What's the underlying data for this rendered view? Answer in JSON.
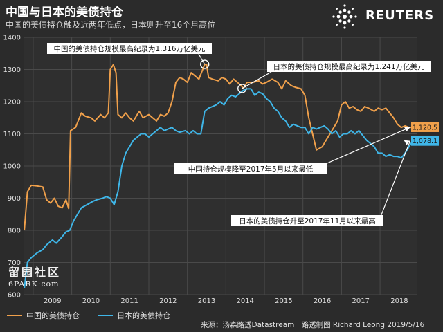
{
  "header": {
    "title": "中国与日本的美债持仓",
    "subtitle": "中国的美债持仓触及近两年低点，日本则升至16个月高位"
  },
  "brand": {
    "name": "REUTERS"
  },
  "watermark": {
    "line1": "留园社区",
    "line2": "6PARK·com"
  },
  "legend": {
    "china": "中国的美债持仓",
    "japan": "日本的美债持仓"
  },
  "source": "来源：汤森路透Datastream | 路透制图 Richard Leong 2019/5/16",
  "colors": {
    "background": "#2b2b2b",
    "china": "#f0a04b",
    "japan": "#3fb6e8",
    "grid": "#4a4a4a"
  },
  "chart_data": {
    "type": "line",
    "title": "中国与日本的美债持仓",
    "xlabel": "",
    "ylabel": "",
    "xlim": [
      2008.75,
      2018.95
    ],
    "ylim": [
      600,
      1400
    ],
    "grid": true,
    "legend_position": "bottom-left",
    "y_ticks": [
      600,
      700,
      800,
      900,
      1000,
      1100,
      1200,
      1300,
      1400
    ],
    "x_ticks": [
      {
        "value": 2009,
        "label": "2009"
      },
      {
        "value": 2010,
        "label": "2010"
      },
      {
        "value": 2011,
        "label": "2011"
      },
      {
        "value": 2012,
        "label": "2012"
      },
      {
        "value": 2013,
        "label": "2013"
      },
      {
        "value": 2014,
        "label": "2014"
      },
      {
        "value": 2015,
        "label": "2015"
      },
      {
        "value": 2016,
        "label": "2016"
      },
      {
        "value": 2017,
        "label": "2017"
      },
      {
        "value": 2018,
        "label": "2018"
      }
    ],
    "series": [
      {
        "name": "中国的美债持仓",
        "key": "china",
        "end_label": "1,120.5",
        "points": [
          [
            2008.77,
            800
          ],
          [
            2008.85,
            920
          ],
          [
            2008.95,
            940
          ],
          [
            2009.1,
            938
          ],
          [
            2009.25,
            935
          ],
          [
            2009.35,
            895
          ],
          [
            2009.45,
            885
          ],
          [
            2009.55,
            900
          ],
          [
            2009.65,
            875
          ],
          [
            2009.75,
            870
          ],
          [
            2009.85,
            895
          ],
          [
            2009.92,
            868
          ],
          [
            2009.97,
            1110
          ],
          [
            2010.1,
            1120
          ],
          [
            2010.25,
            1165
          ],
          [
            2010.35,
            1155
          ],
          [
            2010.5,
            1150
          ],
          [
            2010.6,
            1140
          ],
          [
            2010.75,
            1160
          ],
          [
            2010.85,
            1150
          ],
          [
            2010.95,
            1165
          ],
          [
            2011.0,
            1300
          ],
          [
            2011.08,
            1315
          ],
          [
            2011.15,
            1290
          ],
          [
            2011.2,
            1160
          ],
          [
            2011.3,
            1150
          ],
          [
            2011.4,
            1165
          ],
          [
            2011.5,
            1150
          ],
          [
            2011.6,
            1140
          ],
          [
            2011.75,
            1170
          ],
          [
            2011.85,
            1150
          ],
          [
            2012.0,
            1160
          ],
          [
            2012.1,
            1150
          ],
          [
            2012.2,
            1140
          ],
          [
            2012.3,
            1160
          ],
          [
            2012.4,
            1155
          ],
          [
            2012.5,
            1165
          ],
          [
            2012.6,
            1200
          ],
          [
            2012.7,
            1260
          ],
          [
            2012.8,
            1275
          ],
          [
            2012.9,
            1270
          ],
          [
            2013.0,
            1260
          ],
          [
            2013.1,
            1290
          ],
          [
            2013.2,
            1280
          ],
          [
            2013.3,
            1270
          ],
          [
            2013.45,
            1316
          ],
          [
            2013.5,
            1315
          ],
          [
            2013.55,
            1275
          ],
          [
            2013.65,
            1270
          ],
          [
            2013.8,
            1265
          ],
          [
            2013.9,
            1275
          ],
          [
            2014.0,
            1270
          ],
          [
            2014.1,
            1255
          ],
          [
            2014.2,
            1270
          ],
          [
            2014.3,
            1260
          ],
          [
            2014.4,
            1250
          ],
          [
            2014.45,
            1241
          ],
          [
            2014.55,
            1260
          ],
          [
            2014.7,
            1260
          ],
          [
            2014.85,
            1265
          ],
          [
            2014.95,
            1255
          ],
          [
            2015.05,
            1260
          ],
          [
            2015.2,
            1270
          ],
          [
            2015.35,
            1260
          ],
          [
            2015.45,
            1240
          ],
          [
            2015.55,
            1265
          ],
          [
            2015.7,
            1250
          ],
          [
            2015.8,
            1245
          ],
          [
            2015.95,
            1240
          ],
          [
            2016.05,
            1220
          ],
          [
            2016.15,
            1150
          ],
          [
            2016.25,
            1100
          ],
          [
            2016.35,
            1050
          ],
          [
            2016.5,
            1060
          ],
          [
            2016.6,
            1080
          ],
          [
            2016.7,
            1100
          ],
          [
            2016.8,
            1120
          ],
          [
            2016.9,
            1140
          ],
          [
            2017.0,
            1190
          ],
          [
            2017.1,
            1200
          ],
          [
            2017.2,
            1180
          ],
          [
            2017.3,
            1185
          ],
          [
            2017.4,
            1175
          ],
          [
            2017.5,
            1170
          ],
          [
            2017.6,
            1185
          ],
          [
            2017.7,
            1180
          ],
          [
            2017.85,
            1170
          ],
          [
            2017.95,
            1180
          ],
          [
            2018.05,
            1175
          ],
          [
            2018.15,
            1180
          ],
          [
            2018.25,
            1165
          ],
          [
            2018.35,
            1150
          ],
          [
            2018.45,
            1130
          ],
          [
            2018.55,
            1120
          ],
          [
            2018.65,
            1125
          ],
          [
            2018.75,
            1120
          ],
          [
            2018.85,
            1120.5
          ]
        ]
      },
      {
        "name": "日本的美债持仓",
        "key": "japan",
        "end_label": "1,078.1",
        "points": [
          [
            2008.77,
            620
          ],
          [
            2008.85,
            700
          ],
          [
            2008.95,
            715
          ],
          [
            2009.1,
            730
          ],
          [
            2009.25,
            740
          ],
          [
            2009.35,
            755
          ],
          [
            2009.5,
            770
          ],
          [
            2009.6,
            760
          ],
          [
            2009.75,
            780
          ],
          [
            2009.85,
            795
          ],
          [
            2009.95,
            800
          ],
          [
            2010.05,
            830
          ],
          [
            2010.15,
            850
          ],
          [
            2010.25,
            870
          ],
          [
            2010.4,
            880
          ],
          [
            2010.55,
            890
          ],
          [
            2010.65,
            895
          ],
          [
            2010.8,
            900
          ],
          [
            2010.9,
            905
          ],
          [
            2011.0,
            900
          ],
          [
            2011.1,
            880
          ],
          [
            2011.2,
            920
          ],
          [
            2011.3,
            1000
          ],
          [
            2011.4,
            1040
          ],
          [
            2011.5,
            1060
          ],
          [
            2011.6,
            1080
          ],
          [
            2011.7,
            1090
          ],
          [
            2011.8,
            1100
          ],
          [
            2011.9,
            1100
          ],
          [
            2012.0,
            1090
          ],
          [
            2012.1,
            1100
          ],
          [
            2012.2,
            1110
          ],
          [
            2012.3,
            1120
          ],
          [
            2012.4,
            1110
          ],
          [
            2012.5,
            1115
          ],
          [
            2012.6,
            1120
          ],
          [
            2012.7,
            1110
          ],
          [
            2012.8,
            1105
          ],
          [
            2012.95,
            1110
          ],
          [
            2013.05,
            1100
          ],
          [
            2013.15,
            1110
          ],
          [
            2013.25,
            1100
          ],
          [
            2013.35,
            1100
          ],
          [
            2013.45,
            1170
          ],
          [
            2013.55,
            1180
          ],
          [
            2013.65,
            1185
          ],
          [
            2013.75,
            1190
          ],
          [
            2013.85,
            1200
          ],
          [
            2013.95,
            1190
          ],
          [
            2014.05,
            1210
          ],
          [
            2014.15,
            1220
          ],
          [
            2014.25,
            1215
          ],
          [
            2014.35,
            1225
          ],
          [
            2014.45,
            1235
          ],
          [
            2014.55,
            1240
          ],
          [
            2014.65,
            1240
          ],
          [
            2014.75,
            1220
          ],
          [
            2014.85,
            1230
          ],
          [
            2014.95,
            1225
          ],
          [
            2015.05,
            1210
          ],
          [
            2015.15,
            1200
          ],
          [
            2015.25,
            1180
          ],
          [
            2015.35,
            1170
          ],
          [
            2015.45,
            1150
          ],
          [
            2015.55,
            1140
          ],
          [
            2015.65,
            1120
          ],
          [
            2015.75,
            1130
          ],
          [
            2015.85,
            1125
          ],
          [
            2015.95,
            1120
          ],
          [
            2016.05,
            1120
          ],
          [
            2016.15,
            1100
          ],
          [
            2016.25,
            1120
          ],
          [
            2016.35,
            1115
          ],
          [
            2016.45,
            1120
          ],
          [
            2016.55,
            1125
          ],
          [
            2016.65,
            1115
          ],
          [
            2016.75,
            1100
          ],
          [
            2016.85,
            1110
          ],
          [
            2016.95,
            1090
          ],
          [
            2017.05,
            1100
          ],
          [
            2017.15,
            1100
          ],
          [
            2017.25,
            1110
          ],
          [
            2017.35,
            1100
          ],
          [
            2017.45,
            1110
          ],
          [
            2017.55,
            1095
          ],
          [
            2017.65,
            1080
          ],
          [
            2017.75,
            1070
          ],
          [
            2017.85,
            1060
          ],
          [
            2017.95,
            1040
          ],
          [
            2018.05,
            1040
          ],
          [
            2018.15,
            1030
          ],
          [
            2018.25,
            1035
          ],
          [
            2018.35,
            1030
          ],
          [
            2018.45,
            1030
          ],
          [
            2018.55,
            1025
          ],
          [
            2018.65,
            1040
          ],
          [
            2018.75,
            1060
          ],
          [
            2018.85,
            1078.1
          ]
        ]
      }
    ],
    "annotations": [
      {
        "text": "中国的美债持仓规模最高纪录为1.316万亿美元",
        "point": [
          2013.45,
          1316
        ],
        "series": "china"
      },
      {
        "text": "日本的美债持仓规模最高纪录为1.241万亿美元",
        "point": [
          2014.42,
          1241
        ],
        "series": "japan"
      },
      {
        "text": "中国持仓规模降至2017年5月以来最低",
        "point": [
          2018.78,
          1120.5
        ],
        "series": "china"
      },
      {
        "text": "日本的美债持仓升至2017年11月以来最高",
        "point": [
          2018.78,
          1078.1
        ],
        "series": "japan"
      }
    ]
  }
}
